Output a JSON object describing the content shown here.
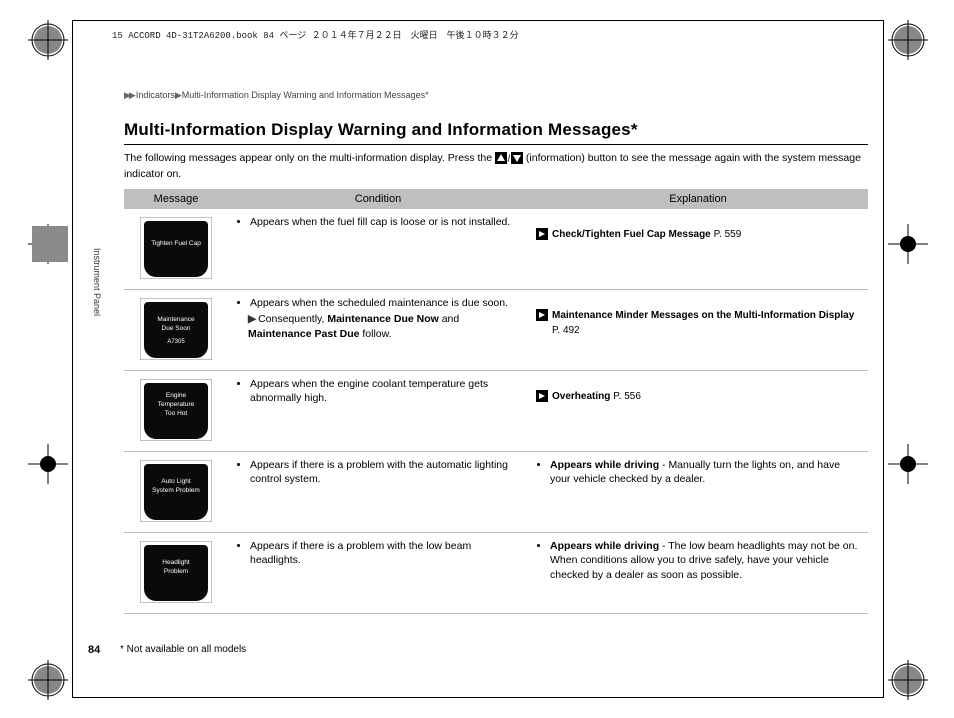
{
  "print_header": "15 ACCORD 4D-31T2A6200.book  84 ページ  ２０１４年７月２２日　火曜日　午後１０時３２分",
  "runhead": {
    "marker": "▶▶",
    "path1": "Indicators",
    "sep": "▶",
    "path2": "Multi-Information Display Warning and Information Messages",
    "asterisk": "*"
  },
  "side_label": "Instrument Panel",
  "title": "Multi-Information Display Warning and Information Messages",
  "title_asterisk": "*",
  "intro_before": "The following messages appear only on the multi-information display. Press the ",
  "intro_after": " (information) button to see the message again with the system message indicator on.",
  "columns": {
    "message": "Message",
    "condition": "Condition",
    "explanation": "Explanation"
  },
  "rows": [
    {
      "icon_lines": [
        "Tighten Fuel Cap"
      ],
      "icon_sub": "",
      "condition_bullets": [
        "Appears when the fuel fill cap is loose or is not installed."
      ],
      "condition_sub": null,
      "explanation_xref": {
        "bold": "Check/Tighten Fuel Cap Message",
        "page": "P. 559"
      },
      "explanation_text": null
    },
    {
      "icon_lines": [
        "Maintenance",
        "Due Soon"
      ],
      "icon_sub": "A7305",
      "condition_bullets": [
        "Appears when the scheduled maintenance is due soon."
      ],
      "condition_sub": {
        "prefix": "Consequently, ",
        "b1": "Maintenance Due Now",
        "mid": " and ",
        "b2": "Maintenance Past Due",
        "suffix": " follow."
      },
      "explanation_xref": {
        "bold": "Maintenance Minder Messages on the Multi-Information Display",
        "page": "P. 492"
      },
      "explanation_text": null
    },
    {
      "icon_lines": [
        "Engine",
        "Temperature",
        "Too Hot"
      ],
      "icon_sub": "",
      "condition_bullets": [
        "Appears when the engine coolant temperature gets abnormally high."
      ],
      "condition_sub": null,
      "explanation_xref": {
        "bold": "Overheating",
        "page": "P. 556"
      },
      "explanation_text": null
    },
    {
      "icon_lines": [
        "Auto Light",
        "System Problem"
      ],
      "icon_sub": "",
      "condition_bullets": [
        "Appears if there is a problem with the automatic lighting control system."
      ],
      "condition_sub": null,
      "explanation_xref": null,
      "explanation_text": {
        "lead": "Appears while driving",
        "rest": " - Manually turn the lights on, and have your vehicle checked by a dealer."
      }
    },
    {
      "icon_lines": [
        "Headlight",
        "Problem"
      ],
      "icon_sub": "",
      "condition_bullets": [
        "Appears if there is a problem with the low beam headlights."
      ],
      "condition_sub": null,
      "explanation_xref": null,
      "explanation_text": {
        "lead": "Appears while driving",
        "rest": " - The low beam headlights may not be on. When conditions allow you to drive safely, have your vehicle checked by a dealer as soon as possible."
      }
    }
  ],
  "page_number": "84",
  "footnote": "* Not available on all models",
  "colors": {
    "header_bg": "#bfbfbf",
    "tab_bg": "#8a8a8a",
    "rule": "#bbbbbb",
    "icon_bg": "#0a0a0a",
    "icon_text": "#ffffff"
  }
}
